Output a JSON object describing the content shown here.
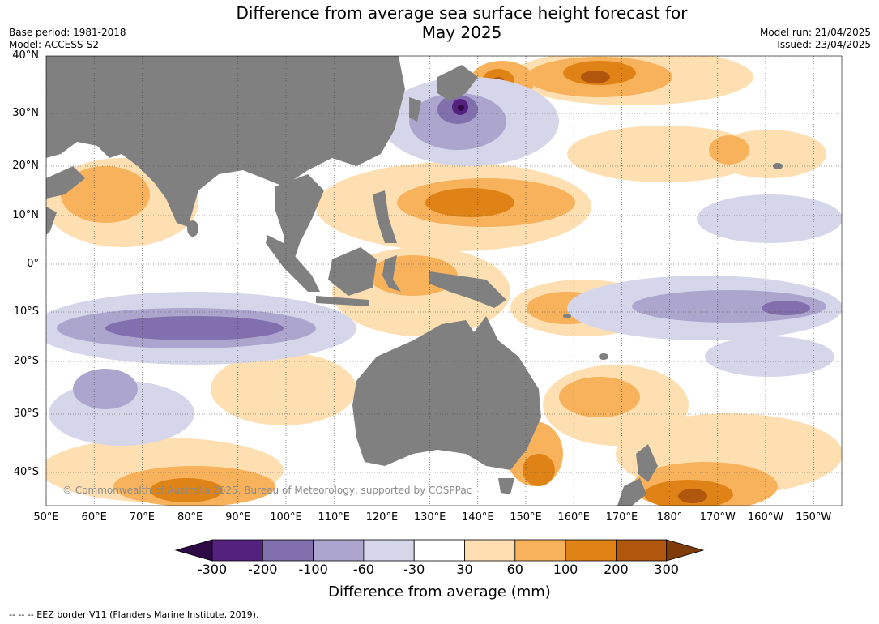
{
  "header": {
    "title_line1": "Difference from average sea surface height forecast for",
    "title_line2": "May 2025",
    "base_period": "Base period: 1981-2018",
    "model": "Model: ACCESS-S2",
    "model_run": "Model run: 21/04/2025",
    "issued": "Issued: 23/04/2025"
  },
  "map": {
    "copyright": "© Commonwealth of Australia 2025, Bureau of Meteorology, supported by COSPPac",
    "land_color": "#808080",
    "lat_labels": [
      "40°N",
      "30°N",
      "20°N",
      "10°N",
      "0°",
      "10°S",
      "20°S",
      "30°S",
      "40°S"
    ],
    "lon_labels": [
      "50°E",
      "60°E",
      "70°E",
      "80°E",
      "90°E",
      "100°E",
      "110°E",
      "120°E",
      "130°E",
      "140°E",
      "150°E",
      "160°E",
      "170°E",
      "180°",
      "170°W",
      "160°W",
      "150°W"
    ]
  },
  "colorbar": {
    "label": "Difference from average (mm)",
    "ticks": [
      "-300",
      "-200",
      "-100",
      "-60",
      "-30",
      "30",
      "60",
      "100",
      "200",
      "300"
    ],
    "colors": {
      "below_min": "#2d0a45",
      "m300_m200": "#55217f",
      "m200_m100": "#8170ad",
      "m100_m60": "#aca6cf",
      "m60_m30": "#d6d6ea",
      "m30_30": "#ffffff",
      "p30_60": "#fddfb1",
      "p60_100": "#f8b25c",
      "p100_200": "#e08316",
      "p200_300": "#b1560d",
      "above_max": "#7f3b08"
    }
  },
  "footnote": {
    "text": "--  --  -- EEZ border V11 (Flanders Marine Institute, 2019)."
  }
}
